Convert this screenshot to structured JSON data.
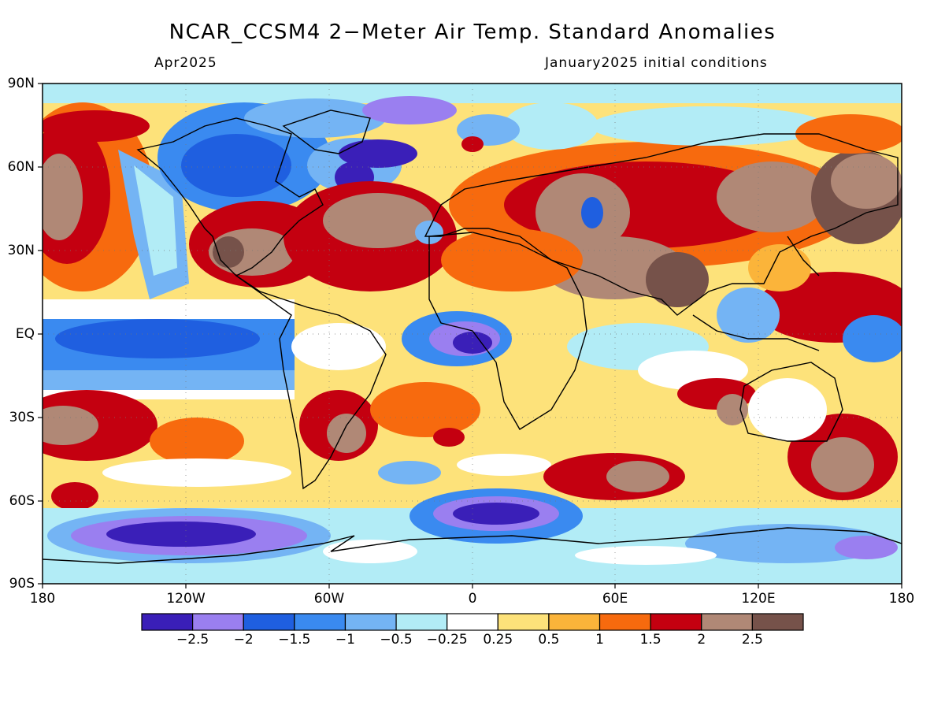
{
  "header": {
    "title": "NCAR_CCSM4 2−Meter Air Temp. Standard Anomalies",
    "valid_month": "Apr2025",
    "init_label": "January2025 initial conditions"
  },
  "axes": {
    "lat_labels": [
      "90N",
      "60N",
      "30N",
      "EQ",
      "30S",
      "60S",
      "90S"
    ],
    "lon_labels": [
      "180",
      "120W",
      "60W",
      "0",
      "60E",
      "120E",
      "180"
    ]
  },
  "colorbar": {
    "labels": [
      "−2.5",
      "−2",
      "−1.5",
      "−1",
      "−0.5",
      "−0.25",
      "0.25",
      "0.5",
      "1",
      "1.5",
      "2",
      "2.5"
    ],
    "colors": [
      "#3a1fb8",
      "#9a7ff0",
      "#1f5fe0",
      "#3a8af0",
      "#74b4f4",
      "#b2ecf6",
      "#ffffff",
      "#fde27a",
      "#fbb43a",
      "#f76a0e",
      "#c40010",
      "#b08876",
      "#76524a"
    ]
  }
}
